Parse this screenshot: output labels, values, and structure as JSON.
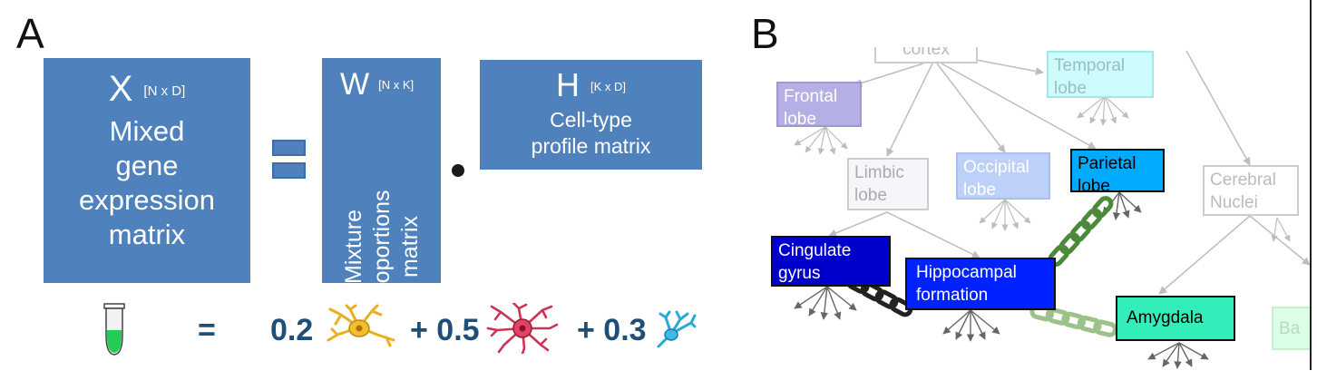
{
  "panel_a": {
    "letter": "A",
    "x_symbol": "X",
    "x_dims": "[N x D]",
    "x_desc": [
      "Mixed",
      "gene",
      "expression",
      "matrix"
    ],
    "w_symbol": "W",
    "w_dims": "[N x K]",
    "w_desc": [
      "Mixture",
      "proportions",
      "matrix"
    ],
    "h_symbol": "H",
    "h_dims": "[K x D]",
    "h_desc": [
      "Cell-type",
      "profile matrix"
    ],
    "equation": {
      "equals": "=",
      "terms": [
        "0.2",
        "+ 0.5",
        "+ 0.3"
      ]
    },
    "colors": {
      "matrix_fill": "#4f81bd",
      "equation_text": "#1f4e79",
      "tube_liquid": "#22cc55"
    }
  },
  "panel_b": {
    "letter": "B",
    "nodes": {
      "cortex": "cortex",
      "temporal": [
        "Temporal",
        "lobe"
      ],
      "frontal": [
        "Frontal",
        "lobe"
      ],
      "limbic": [
        "Limbic",
        "lobe"
      ],
      "occipital": [
        "Occipital",
        "lobe"
      ],
      "parietal": [
        "Parietal",
        "lobe"
      ],
      "cerebral": [
        "Cerebral",
        "Nuclei"
      ],
      "cingulate": [
        "Cingulate",
        "gyrus"
      ],
      "hippocampal": [
        "Hippocampal",
        "formation"
      ],
      "amygdala": "Amygdala",
      "ba": "Ba"
    },
    "colors": {
      "cingulate": "#0000cc",
      "hippocampal": "#0022ff",
      "parietal": "#00aaff",
      "amygdala": "#33eebb",
      "chain": "#4a8a3a"
    }
  }
}
